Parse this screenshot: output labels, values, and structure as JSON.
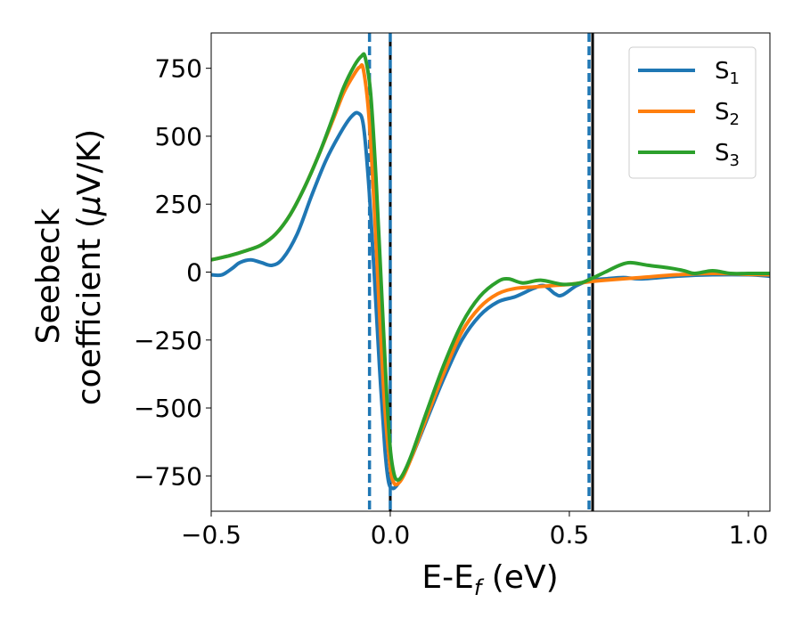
{
  "chart_data": {
    "type": "line",
    "title": "",
    "xlabel": {
      "main": "E-E",
      "sub": "f",
      "unit": " (eV)"
    },
    "ylabel": {
      "line1": "Seebeck",
      "line2_text": "coefficient  (",
      "line2_symbol": "μ",
      "line2_unit": "V/K)"
    },
    "xlim": [
      -0.5,
      1.06
    ],
    "ylim": [
      -880,
      880
    ],
    "x_ticks": [
      {
        "value": -0.5,
        "label": "−0.5"
      },
      {
        "value": 0.0,
        "label": "0.0"
      },
      {
        "value": 0.5,
        "label": "0.5"
      },
      {
        "value": 1.0,
        "label": "1.0"
      }
    ],
    "y_ticks": [
      {
        "value": 750,
        "label": "750"
      },
      {
        "value": 500,
        "label": "500"
      },
      {
        "value": 250,
        "label": "250"
      },
      {
        "value": 0,
        "label": "0"
      },
      {
        "value": -250,
        "label": "−250"
      },
      {
        "value": -500,
        "label": "−500"
      },
      {
        "value": -750,
        "label": "−750"
      }
    ],
    "grid": false,
    "legend": {
      "placement": "top-right"
    },
    "series": [
      {
        "name": "S",
        "subscript": "1",
        "color": "#1f77b4",
        "points": [
          [
            -0.5,
            -10
          ],
          [
            -0.47,
            -10
          ],
          [
            -0.44,
            15
          ],
          [
            -0.42,
            35
          ],
          [
            -0.39,
            45
          ],
          [
            -0.36,
            35
          ],
          [
            -0.33,
            25
          ],
          [
            -0.3,
            50
          ],
          [
            -0.26,
            140
          ],
          [
            -0.22,
            280
          ],
          [
            -0.18,
            410
          ],
          [
            -0.14,
            510
          ],
          [
            -0.11,
            570
          ],
          [
            -0.09,
            585
          ],
          [
            -0.075,
            540
          ],
          [
            -0.06,
            320
          ],
          [
            -0.045,
            0
          ],
          [
            -0.03,
            -350
          ],
          [
            -0.015,
            -650
          ],
          [
            -0.005,
            -770
          ],
          [
            0.005,
            -795
          ],
          [
            0.015,
            -790
          ],
          [
            0.03,
            -760
          ],
          [
            0.06,
            -680
          ],
          [
            0.1,
            -550
          ],
          [
            0.15,
            -390
          ],
          [
            0.2,
            -250
          ],
          [
            0.25,
            -160
          ],
          [
            0.3,
            -110
          ],
          [
            0.35,
            -90
          ],
          [
            0.4,
            -60
          ],
          [
            0.43,
            -50
          ],
          [
            0.46,
            -80
          ],
          [
            0.48,
            -85
          ],
          [
            0.52,
            -50
          ],
          [
            0.56,
            -30
          ],
          [
            0.6,
            -25
          ],
          [
            0.65,
            -20
          ],
          [
            0.7,
            -25
          ],
          [
            0.8,
            -15
          ],
          [
            0.9,
            -10
          ],
          [
            1.0,
            -10
          ],
          [
            1.06,
            -15
          ]
        ]
      },
      {
        "name": "S",
        "subscript": "2",
        "color": "#ff7f0e",
        "points": [
          [
            -0.5,
            45
          ],
          [
            -0.45,
            60
          ],
          [
            -0.4,
            80
          ],
          [
            -0.36,
            100
          ],
          [
            -0.32,
            140
          ],
          [
            -0.28,
            210
          ],
          [
            -0.24,
            310
          ],
          [
            -0.2,
            430
          ],
          [
            -0.16,
            560
          ],
          [
            -0.13,
            660
          ],
          [
            -0.1,
            730
          ],
          [
            -0.085,
            755
          ],
          [
            -0.075,
            745
          ],
          [
            -0.06,
            580
          ],
          [
            -0.045,
            250
          ],
          [
            -0.03,
            -150
          ],
          [
            -0.015,
            -500
          ],
          [
            0.0,
            -720
          ],
          [
            0.01,
            -775
          ],
          [
            0.02,
            -780
          ],
          [
            0.035,
            -755
          ],
          [
            0.06,
            -680
          ],
          [
            0.1,
            -540
          ],
          [
            0.15,
            -370
          ],
          [
            0.2,
            -220
          ],
          [
            0.25,
            -130
          ],
          [
            0.3,
            -80
          ],
          [
            0.35,
            -60
          ],
          [
            0.4,
            -55
          ],
          [
            0.45,
            -50
          ],
          [
            0.5,
            -45
          ],
          [
            0.56,
            -35
          ],
          [
            0.6,
            -30
          ],
          [
            0.7,
            -20
          ],
          [
            0.8,
            -10
          ],
          [
            0.9,
            -5
          ],
          [
            1.0,
            -8
          ],
          [
            1.06,
            -10
          ]
        ]
      },
      {
        "name": "S",
        "subscript": "3",
        "color": "#2ca02c",
        "points": [
          [
            -0.5,
            45
          ],
          [
            -0.45,
            60
          ],
          [
            -0.4,
            80
          ],
          [
            -0.36,
            100
          ],
          [
            -0.32,
            140
          ],
          [
            -0.28,
            210
          ],
          [
            -0.24,
            310
          ],
          [
            -0.2,
            430
          ],
          [
            -0.16,
            570
          ],
          [
            -0.13,
            680
          ],
          [
            -0.1,
            760
          ],
          [
            -0.08,
            795
          ],
          [
            -0.07,
            790
          ],
          [
            -0.055,
            660
          ],
          [
            -0.04,
            350
          ],
          [
            -0.025,
            -50
          ],
          [
            -0.01,
            -450
          ],
          [
            0.0,
            -650
          ],
          [
            0.01,
            -740
          ],
          [
            0.02,
            -765
          ],
          [
            0.035,
            -745
          ],
          [
            0.06,
            -670
          ],
          [
            0.1,
            -520
          ],
          [
            0.15,
            -340
          ],
          [
            0.2,
            -190
          ],
          [
            0.25,
            -90
          ],
          [
            0.3,
            -35
          ],
          [
            0.33,
            -25
          ],
          [
            0.37,
            -40
          ],
          [
            0.42,
            -30
          ],
          [
            0.48,
            -45
          ],
          [
            0.53,
            -40
          ],
          [
            0.56,
            -25
          ],
          [
            0.6,
            0
          ],
          [
            0.64,
            25
          ],
          [
            0.67,
            35
          ],
          [
            0.72,
            25
          ],
          [
            0.78,
            15
          ],
          [
            0.82,
            5
          ],
          [
            0.85,
            -5
          ],
          [
            0.9,
            5
          ],
          [
            0.95,
            -5
          ],
          [
            1.0,
            -5
          ],
          [
            1.06,
            -5
          ]
        ]
      }
    ],
    "vertical_lines": [
      {
        "x": -0.058,
        "color": "#1f77b4",
        "style": "dashed"
      },
      {
        "x": 0.0,
        "color": "#000000",
        "style": "solid"
      },
      {
        "x": 0.0,
        "color": "#1f77b4",
        "style": "dashed"
      },
      {
        "x": 0.565,
        "color": "#000000",
        "style": "solid"
      },
      {
        "x": 0.555,
        "color": "#1f77b4",
        "style": "dashed"
      }
    ]
  }
}
